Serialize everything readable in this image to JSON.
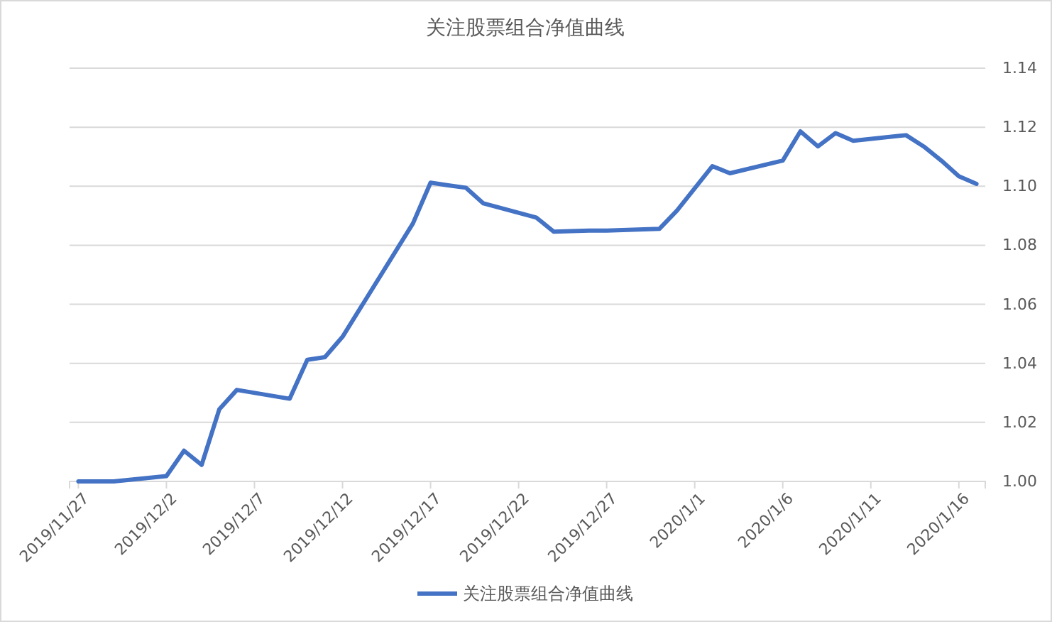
{
  "chart_data": {
    "type": "line",
    "title": "关注股票组合净值曲线",
    "x": [
      "2019-11-27",
      "2019-11-28",
      "2019-11-29",
      "2019-12-02",
      "2019-12-03",
      "2019-12-04",
      "2019-12-05",
      "2019-12-06",
      "2019-12-09",
      "2019-12-10",
      "2019-12-11",
      "2019-12-12",
      "2019-12-13",
      "2019-12-16",
      "2019-12-17",
      "2019-12-18",
      "2019-12-19",
      "2019-12-20",
      "2019-12-23",
      "2019-12-24",
      "2019-12-25",
      "2019-12-26",
      "2019-12-27",
      "2019-12-30",
      "2019-12-31",
      "2020-01-02",
      "2020-01-03",
      "2020-01-06",
      "2020-01-07",
      "2020-01-08",
      "2020-01-09",
      "2020-01-10",
      "2020-01-13",
      "2020-01-14",
      "2020-01-15",
      "2020-01-16",
      "2020-01-17"
    ],
    "series": [
      {
        "name": "关注股票组合净值曲线",
        "color": "#4472c4",
        "values": [
          1.0,
          1.0,
          1.0,
          1.0018,
          1.0104,
          1.0056,
          1.0244,
          1.031,
          1.028,
          1.0412,
          1.0421,
          1.049,
          1.0586,
          1.0874,
          1.1012,
          1.1003,
          1.0995,
          1.0942,
          1.0894,
          1.0846,
          1.0848,
          1.085,
          1.085,
          1.0856,
          1.0918,
          1.1068,
          1.1044,
          1.1087,
          1.1186,
          1.1135,
          1.118,
          1.1154,
          1.1173,
          1.1135,
          1.1087,
          1.1034,
          1.1008
        ]
      }
    ],
    "xlim": [
      "2019-11-26T12:00",
      "2020-01-17T12:00"
    ],
    "xticks": [
      {
        "value": "2019-11-27",
        "label": "2019/11/27"
      },
      {
        "value": "2019-12-02",
        "label": "2019/12/2"
      },
      {
        "value": "2019-12-07",
        "label": "2019/12/7"
      },
      {
        "value": "2019-12-12",
        "label": "2019/12/12"
      },
      {
        "value": "2019-12-17",
        "label": "2019/12/17"
      },
      {
        "value": "2019-12-22",
        "label": "2019/12/22"
      },
      {
        "value": "2019-12-27",
        "label": "2019/12/27"
      },
      {
        "value": "2020-01-01",
        "label": "2020/1/1"
      },
      {
        "value": "2020-01-06",
        "label": "2020/1/6"
      },
      {
        "value": "2020-01-11",
        "label": "2020/1/11"
      },
      {
        "value": "2020-01-16",
        "label": "2020/1/16"
      }
    ],
    "ylim": [
      1.0,
      1.14
    ],
    "yticks": [
      {
        "value": 1.0,
        "label": "1.00"
      },
      {
        "value": 1.02,
        "label": "1.02"
      },
      {
        "value": 1.04,
        "label": "1.04"
      },
      {
        "value": 1.06,
        "label": "1.06"
      },
      {
        "value": 1.08,
        "label": "1.08"
      },
      {
        "value": 1.1,
        "label": "1.10"
      },
      {
        "value": 1.12,
        "label": "1.12"
      },
      {
        "value": 1.14,
        "label": "1.14"
      }
    ],
    "grid": "y",
    "legend": "bottom",
    "marker": "none",
    "line_style": "solid"
  }
}
